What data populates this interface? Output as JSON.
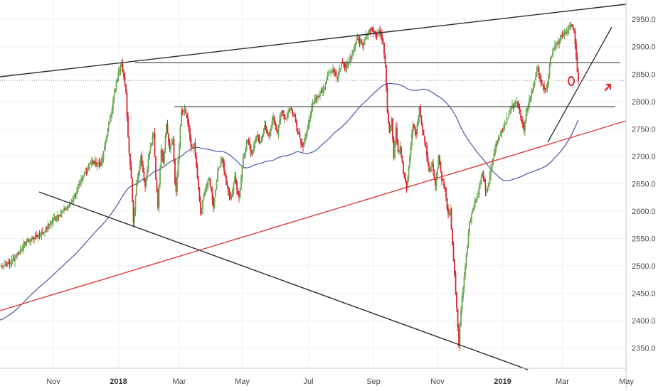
{
  "chart_data": {
    "type": "candlestick",
    "title": "",
    "xlabel": "",
    "ylabel": "",
    "ylim": [
      2310,
      2985
    ],
    "y_ticks": [
      2350.0,
      2400.0,
      2450.0,
      2500.0,
      2550.0,
      2600.0,
      2650.0,
      2700.0,
      2750.0,
      2800.0,
      2850.0,
      2900.0,
      2950.0
    ],
    "x_ticks": [
      {
        "label": "Nov",
        "t": 20,
        "major": false
      },
      {
        "label": "2018",
        "t": 81,
        "major": true
      },
      {
        "label": "Mar",
        "t": 138,
        "major": false
      },
      {
        "label": "May",
        "t": 197,
        "major": false
      },
      {
        "label": "Jul",
        "t": 259,
        "major": false
      },
      {
        "label": "Sep",
        "t": 320,
        "major": false
      },
      {
        "label": "Nov",
        "t": 380,
        "major": false
      },
      {
        "label": "2019",
        "t": 441,
        "major": true
      },
      {
        "label": "Mar",
        "t": 497,
        "major": false
      },
      {
        "label": "May",
        "t": 557,
        "major": false
      }
    ],
    "t_range": [
      -30,
      582
    ],
    "colors": {
      "up": "#6aa84f",
      "down": "#d8262f",
      "moving_average": "#4a56a8",
      "support_line": "#e03a3a",
      "trend_line": "#2b2b2b",
      "level_line": "#555555",
      "grid": "#eef1f6",
      "annotation": "#e0262f"
    },
    "anchors": [
      [
        -30,
        2500
      ],
      [
        -20,
        2505
      ],
      [
        -5,
        2545
      ],
      [
        10,
        2560
      ],
      [
        20,
        2585
      ],
      [
        35,
        2610
      ],
      [
        45,
        2650
      ],
      [
        55,
        2690
      ],
      [
        65,
        2685
      ],
      [
        70,
        2740
      ],
      [
        75,
        2790
      ],
      [
        80,
        2845
      ],
      [
        84,
        2872
      ],
      [
        88,
        2815
      ],
      [
        90,
        2735
      ],
      [
        93,
        2660
      ],
      [
        95,
        2580
      ],
      [
        98,
        2650
      ],
      [
        102,
        2700
      ],
      [
        106,
        2645
      ],
      [
        110,
        2710
      ],
      [
        114,
        2740
      ],
      [
        116,
        2660
      ],
      [
        118,
        2610
      ],
      [
        121,
        2715
      ],
      [
        123,
        2690
      ],
      [
        126,
        2760
      ],
      [
        129,
        2710
      ],
      [
        132,
        2735
      ],
      [
        134,
        2650
      ],
      [
        135,
        2635
      ],
      [
        138,
        2720
      ],
      [
        140,
        2780
      ],
      [
        143,
        2785
      ],
      [
        146,
        2760
      ],
      [
        149,
        2715
      ],
      [
        152,
        2720
      ],
      [
        155,
        2660
      ],
      [
        158,
        2595
      ],
      [
        162,
        2640
      ],
      [
        166,
        2660
      ],
      [
        170,
        2610
      ],
      [
        174,
        2670
      ],
      [
        178,
        2700
      ],
      [
        182,
        2650
      ],
      [
        186,
        2620
      ],
      [
        190,
        2660
      ],
      [
        194,
        2625
      ],
      [
        198,
        2700
      ],
      [
        202,
        2730
      ],
      [
        206,
        2705
      ],
      [
        210,
        2740
      ],
      [
        214,
        2725
      ],
      [
        218,
        2755
      ],
      [
        222,
        2735
      ],
      [
        226,
        2770
      ],
      [
        230,
        2745
      ],
      [
        234,
        2785
      ],
      [
        238,
        2765
      ],
      [
        242,
        2790
      ],
      [
        246,
        2770
      ],
      [
        250,
        2740
      ],
      [
        254,
        2715
      ],
      [
        258,
        2750
      ],
      [
        262,
        2790
      ],
      [
        266,
        2805
      ],
      [
        270,
        2815
      ],
      [
        274,
        2830
      ],
      [
        278,
        2850
      ],
      [
        282,
        2860
      ],
      [
        286,
        2845
      ],
      [
        290,
        2870
      ],
      [
        294,
        2865
      ],
      [
        298,
        2880
      ],
      [
        302,
        2900
      ],
      [
        306,
        2915
      ],
      [
        310,
        2900
      ],
      [
        314,
        2925
      ],
      [
        318,
        2935
      ],
      [
        322,
        2920
      ],
      [
        326,
        2930
      ],
      [
        329,
        2910
      ],
      [
        331,
        2870
      ],
      [
        333,
        2780
      ],
      [
        335,
        2740
      ],
      [
        337,
        2770
      ],
      [
        339,
        2700
      ],
      [
        341,
        2755
      ],
      [
        343,
        2710
      ],
      [
        345,
        2720
      ],
      [
        348,
        2670
      ],
      [
        351,
        2640
      ],
      [
        354,
        2700
      ],
      [
        357,
        2760
      ],
      [
        360,
        2740
      ],
      [
        363,
        2790
      ],
      [
        366,
        2745
      ],
      [
        369,
        2720
      ],
      [
        372,
        2670
      ],
      [
        375,
        2690
      ],
      [
        378,
        2645
      ],
      [
        381,
        2700
      ],
      [
        384,
        2660
      ],
      [
        387,
        2640
      ],
      [
        390,
        2590
      ],
      [
        392,
        2600
      ],
      [
        394,
        2540
      ],
      [
        396,
        2480
      ],
      [
        398,
        2420
      ],
      [
        400,
        2355
      ],
      [
        402,
        2420
      ],
      [
        404,
        2460
      ],
      [
        406,
        2500
      ],
      [
        408,
        2540
      ],
      [
        410,
        2580
      ],
      [
        414,
        2610
      ],
      [
        418,
        2630
      ],
      [
        422,
        2670
      ],
      [
        425,
        2640
      ],
      [
        428,
        2650
      ],
      [
        432,
        2700
      ],
      [
        436,
        2730
      ],
      [
        440,
        2745
      ],
      [
        445,
        2770
      ],
      [
        450,
        2790
      ],
      [
        455,
        2800
      ],
      [
        458,
        2770
      ],
      [
        461,
        2745
      ],
      [
        464,
        2790
      ],
      [
        468,
        2815
      ],
      [
        471,
        2840
      ],
      [
        474,
        2860
      ],
      [
        477,
        2835
      ],
      [
        480,
        2820
      ],
      [
        483,
        2830
      ],
      [
        486,
        2880
      ],
      [
        490,
        2900
      ],
      [
        494,
        2910
      ],
      [
        498,
        2925
      ],
      [
        502,
        2930
      ],
      [
        505,
        2945
      ],
      [
        508,
        2930
      ],
      [
        510,
        2880
      ],
      [
        512,
        2835
      ]
    ]
  }
}
